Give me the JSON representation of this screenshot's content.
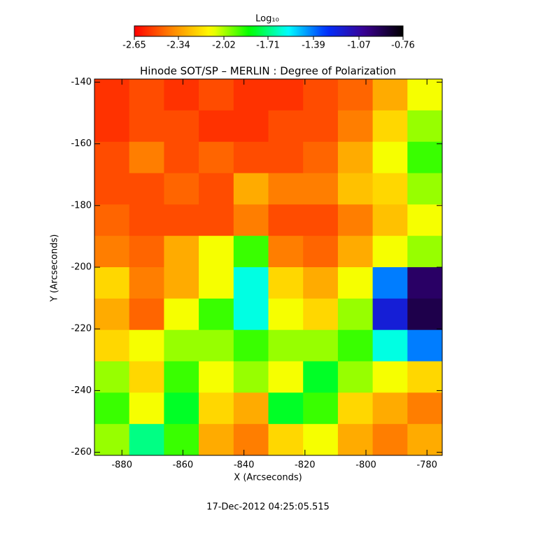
{
  "chart_data": {
    "type": "heatmap",
    "title": "Hinode SOT/SP – MERLIN : Degree of Polarization",
    "xlabel": "X (Arcseconds)",
    "ylabel": "Y (Arcseconds)",
    "footer": "17-Dec-2012 04:25:05.515",
    "colorbar_label": "Log₁₀",
    "clim": [
      -2.65,
      -0.76
    ],
    "cticks": [
      -2.65,
      -2.34,
      -2.02,
      -1.71,
      -1.39,
      -1.07,
      -0.76
    ],
    "colormap": [
      "#ff0000",
      "#ff8800",
      "#ffff00",
      "#00ff00",
      "#00ffff",
      "#0030ff",
      "#3a0090",
      "#000000"
    ],
    "xlim": [
      -889,
      -775
    ],
    "ylim": [
      -261,
      -139
    ],
    "xticks": [
      -880,
      -860,
      -840,
      -820,
      -800,
      -780
    ],
    "yticks": [
      -140,
      -160,
      -180,
      -200,
      -220,
      -240,
      -260
    ],
    "z": [
      [
        -2.55,
        -2.5,
        -2.55,
        -2.5,
        -2.55,
        -2.55,
        -2.5,
        -2.45,
        -2.3,
        -2.1
      ],
      [
        -2.55,
        -2.5,
        -2.5,
        -2.55,
        -2.55,
        -2.5,
        -2.5,
        -2.4,
        -2.2,
        -2.0
      ],
      [
        -2.5,
        -2.4,
        -2.5,
        -2.45,
        -2.5,
        -2.5,
        -2.45,
        -2.3,
        -2.1,
        -1.9
      ],
      [
        -2.5,
        -2.5,
        -2.45,
        -2.5,
        -2.3,
        -2.4,
        -2.4,
        -2.25,
        -2.2,
        -2.0
      ],
      [
        -2.45,
        -2.5,
        -2.5,
        -2.5,
        -2.4,
        -2.5,
        -2.5,
        -2.4,
        -2.25,
        -2.1
      ],
      [
        -2.4,
        -2.45,
        -2.3,
        -2.1,
        -1.9,
        -2.4,
        -2.45,
        -2.3,
        -2.1,
        -2.0
      ],
      [
        -2.2,
        -2.4,
        -2.3,
        -2.1,
        -1.6,
        -2.2,
        -2.3,
        -2.1,
        -1.4,
        -0.95
      ],
      [
        -2.3,
        -2.45,
        -2.1,
        -1.9,
        -1.6,
        -2.1,
        -2.2,
        -2.0,
        -1.2,
        -0.9
      ],
      [
        -2.2,
        -2.1,
        -2.0,
        -2.0,
        -1.9,
        -2.0,
        -2.0,
        -1.9,
        -1.6,
        -1.4
      ],
      [
        -2.0,
        -2.2,
        -1.9,
        -2.1,
        -2.0,
        -2.1,
        -1.8,
        -2.0,
        -2.1,
        -2.2
      ],
      [
        -1.9,
        -2.1,
        -1.8,
        -2.2,
        -2.3,
        -1.8,
        -1.9,
        -2.2,
        -2.3,
        -2.4
      ],
      [
        -2.0,
        -1.7,
        -1.9,
        -2.3,
        -2.4,
        -2.2,
        -2.1,
        -2.3,
        -2.4,
        -2.3
      ]
    ]
  }
}
